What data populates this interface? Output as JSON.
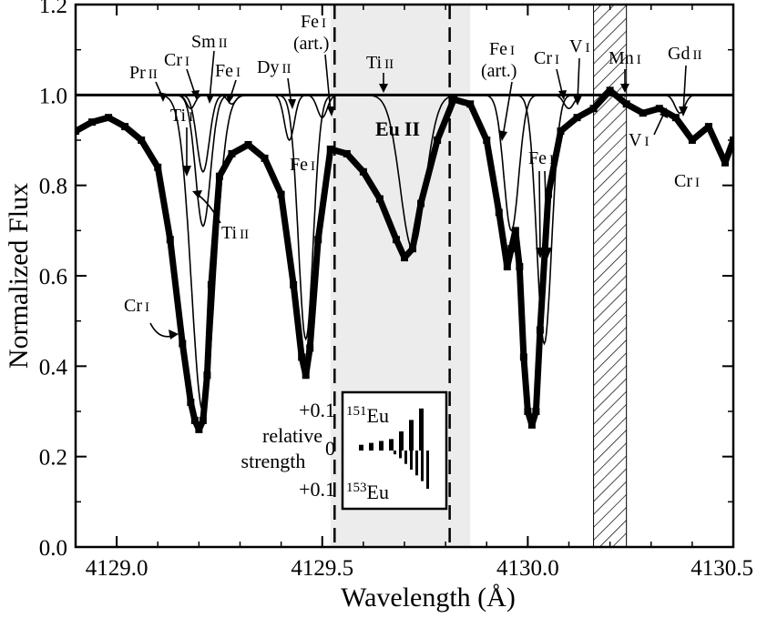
{
  "chart_data": {
    "type": "line",
    "title": "",
    "xlabel": "Wavelength (Å)",
    "ylabel": "Normalized Flux",
    "xlim": [
      4128.9,
      4130.5
    ],
    "ylim": [
      0.0,
      1.2
    ],
    "x_ticks": [
      {
        "value": 4129.0,
        "label": "4129.0"
      },
      {
        "value": 4129.5,
        "label": "4129.5"
      },
      {
        "value": 4130.0,
        "label": "4130.0"
      },
      {
        "value": 4130.5,
        "label": "4130.5"
      }
    ],
    "y_ticks": [
      {
        "value": 0.0,
        "label": "0.0"
      },
      {
        "value": 0.2,
        "label": "0.2"
      },
      {
        "value": 0.4,
        "label": "0.4"
      },
      {
        "value": 0.6,
        "label": "0.6"
      },
      {
        "value": 0.8,
        "label": "0.8"
      },
      {
        "value": 1.0,
        "label": "1.0"
      },
      {
        "value": 1.2,
        "label": "1.2"
      }
    ],
    "regions": {
      "shaded": {
        "x": [
          4129.52,
          4129.86
        ]
      },
      "dashed_lines": [
        4129.53,
        4129.81
      ],
      "hatched": {
        "x": [
          4130.16,
          4130.24
        ]
      }
    },
    "observed_points": {
      "x": [
        4128.9,
        4128.94,
        4128.98,
        4129.02,
        4129.06,
        4129.1,
        4129.13,
        4129.16,
        4129.18,
        4129.19,
        4129.2,
        4129.21,
        4129.22,
        4129.23,
        4129.25,
        4129.28,
        4129.32,
        4129.36,
        4129.4,
        4129.43,
        4129.45,
        4129.46,
        4129.47,
        4129.49,
        4129.52,
        4129.56,
        4129.6,
        4129.64,
        4129.68,
        4129.7,
        4129.72,
        4129.74,
        4129.78,
        4129.82,
        4129.86,
        4129.9,
        4129.93,
        4129.95,
        4129.96,
        4129.97,
        4129.98,
        4129.99,
        4130.0,
        4130.01,
        4130.02,
        4130.03,
        4130.05,
        4130.08,
        4130.12,
        4130.16,
        4130.2,
        4130.24,
        4130.28,
        4130.32,
        4130.36,
        4130.4,
        4130.44,
        4130.48,
        4130.5
      ],
      "y": [
        0.92,
        0.94,
        0.95,
        0.93,
        0.9,
        0.84,
        0.68,
        0.45,
        0.32,
        0.28,
        0.26,
        0.28,
        0.38,
        0.58,
        0.82,
        0.87,
        0.89,
        0.86,
        0.78,
        0.58,
        0.42,
        0.38,
        0.44,
        0.68,
        0.88,
        0.87,
        0.83,
        0.77,
        0.68,
        0.64,
        0.66,
        0.76,
        0.9,
        0.99,
        0.98,
        0.9,
        0.74,
        0.62,
        0.66,
        0.7,
        0.62,
        0.42,
        0.3,
        0.27,
        0.3,
        0.48,
        0.78,
        0.92,
        0.95,
        0.97,
        1.01,
        0.98,
        0.96,
        0.97,
        0.95,
        0.9,
        0.93,
        0.85,
        0.9
      ]
    },
    "series": [
      {
        "name": "Cr I",
        "center": 4129.21,
        "depth": 0.7,
        "width": 0.028
      },
      {
        "name": "Ti II",
        "center": 4129.21,
        "depth": 0.29,
        "width": 0.018
      },
      {
        "name": "Ti I",
        "center": 4129.21,
        "depth": 0.17,
        "width": 0.015
      },
      {
        "name": "Fe I",
        "center": 4129.46,
        "depth": 0.54,
        "width": 0.018
      },
      {
        "name": "Dy II",
        "center": 4129.42,
        "depth": 0.1,
        "width": 0.012
      },
      {
        "name": "Fe I (art.)",
        "center": 4129.5,
        "depth": 0.05,
        "width": 0.012
      },
      {
        "name": "Sm II",
        "center": 4129.18,
        "depth": 0.03,
        "width": 0.01
      },
      {
        "name": "Fe I",
        "center": 4129.28,
        "depth": 0.02,
        "width": 0.01
      },
      {
        "name": "Eu II",
        "center": 4129.72,
        "depth": 0.34,
        "width": 0.03
      },
      {
        "name": "Fe I (art.)",
        "center": 4129.96,
        "depth": 0.3,
        "width": 0.018
      },
      {
        "name": "Fe I",
        "center": 4130.04,
        "depth": 0.55,
        "width": 0.018
      },
      {
        "name": "V I",
        "center": 4130.1,
        "depth": 0.03,
        "width": 0.012
      },
      {
        "name": "Gd II",
        "center": 4130.37,
        "depth": 0.04,
        "width": 0.012
      }
    ],
    "annotations": [
      {
        "id": "pr2",
        "text": "Pr",
        "ion": "II"
      },
      {
        "id": "cr1a",
        "text": "Cr",
        "ion": "I"
      },
      {
        "id": "sm2",
        "text": "Sm",
        "ion": "II"
      },
      {
        "id": "fe1a",
        "text": "Fe",
        "ion": "I"
      },
      {
        "id": "dy2",
        "text": "Dy",
        "ion": "II"
      },
      {
        "id": "fe1art_a",
        "text": "Fe",
        "ion": "I",
        "extra": "(art.)"
      },
      {
        "id": "ti2a",
        "text": "Ti",
        "ion": "II"
      },
      {
        "id": "ti1",
        "text": "Ti",
        "ion": "I"
      },
      {
        "id": "fe1b",
        "text": "Fe",
        "ion": "I"
      },
      {
        "id": "ti2b",
        "text": "Ti",
        "ion": "II"
      },
      {
        "id": "cr1b",
        "text": "Cr",
        "ion": "I"
      },
      {
        "id": "eu2",
        "text": "Eu",
        "ion": "II"
      },
      {
        "id": "fe1art_b",
        "text": "Fe",
        "ion": "I",
        "extra": "(art.)"
      },
      {
        "id": "cr1c",
        "text": "Cr",
        "ion": "I"
      },
      {
        "id": "v1a",
        "text": "V",
        "ion": "I"
      },
      {
        "id": "mn1",
        "text": "Mn",
        "ion": "I"
      },
      {
        "id": "gd2",
        "text": "Gd",
        "ion": "II"
      },
      {
        "id": "fe1c",
        "text": "Fe",
        "ion": "I"
      },
      {
        "id": "v1b",
        "text": "V",
        "ion": "I"
      },
      {
        "id": "cr1d",
        "text": "Cr",
        "ion": "I"
      }
    ],
    "inset": {
      "top_label": "+0.1",
      "mid_label": "0",
      "bottom_label": "+0.1",
      "side_label_1": "relative",
      "side_label_2": "strength",
      "isotope_top": "Eu",
      "isotope_top_mass": "151",
      "isotope_bottom": "Eu",
      "isotope_bottom_mass": "153",
      "bars_151": [
        0.015,
        0.02,
        0.025,
        0.03,
        0.05,
        0.08,
        0.11
      ],
      "bars_153": [
        -0.01,
        -0.02,
        -0.035,
        -0.05,
        -0.065,
        -0.08,
        -0.1
      ]
    }
  }
}
